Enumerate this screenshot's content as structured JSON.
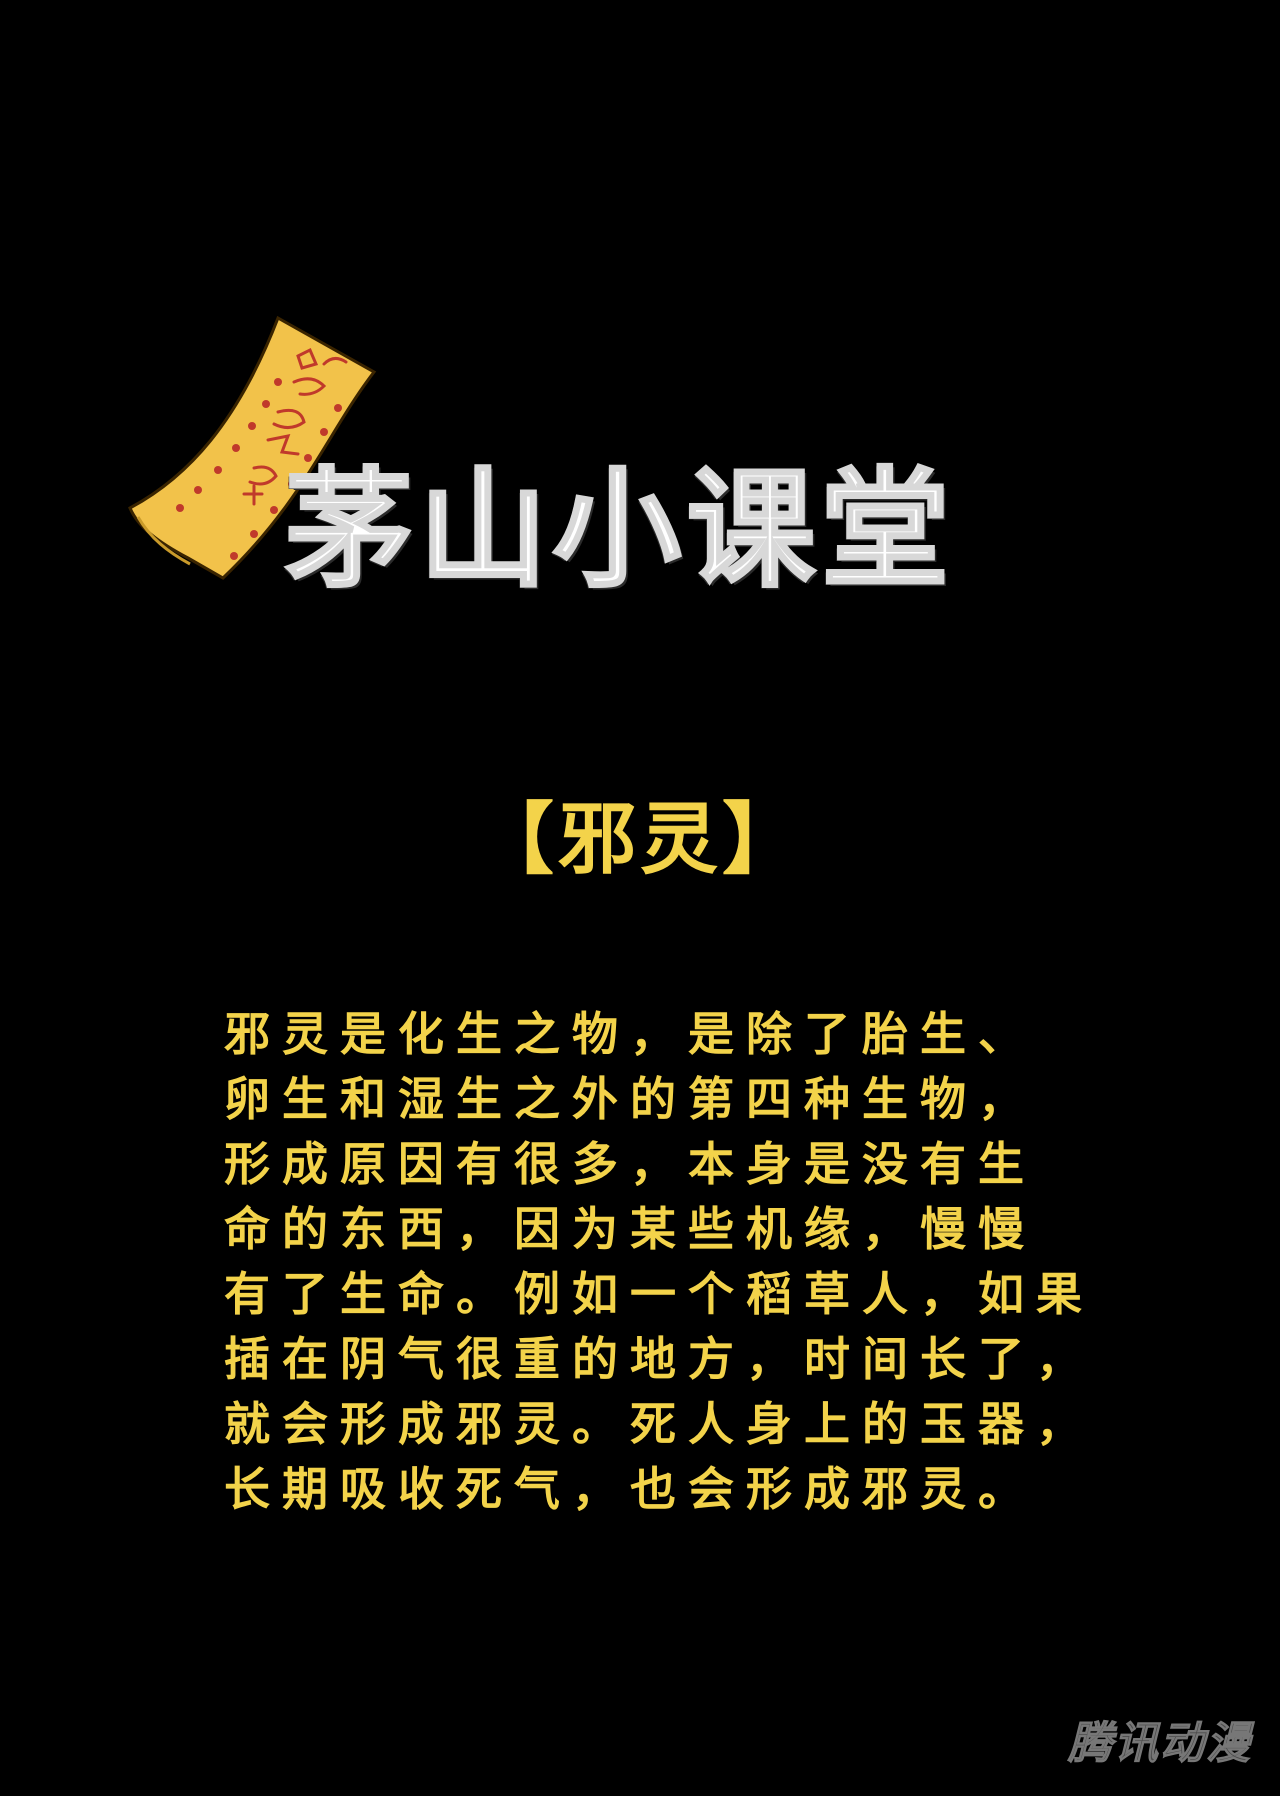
{
  "colors": {
    "background": "#000000",
    "title": "#ffffff",
    "accent_yellow": "#f3d34a",
    "talisman_paper": "#f2c24a",
    "talisman_ink": "#c0392b",
    "watermark": "#4a4a4a"
  },
  "header": {
    "title": "茅山小课堂",
    "talisman_icon": "talisman-scroll-icon",
    "talisman_text": "敕令镇魔符"
  },
  "topic": {
    "label": "【邪灵】"
  },
  "body": {
    "lines": [
      "邪灵是化生之物，是除了胎生、",
      "卵生和湿生之外的第四种生物，",
      "形成原因有很多，本身是没有生",
      "命的东西，因为某些机缘，慢慢",
      "有了生命。例如一个稻草人，如果",
      "插在阴气很重的地方，时间长了，",
      "就会形成邪灵。死人身上的玉器，",
      "长期吸收死气，也会形成邪灵。"
    ]
  },
  "watermark": {
    "text": "腾讯动漫"
  }
}
